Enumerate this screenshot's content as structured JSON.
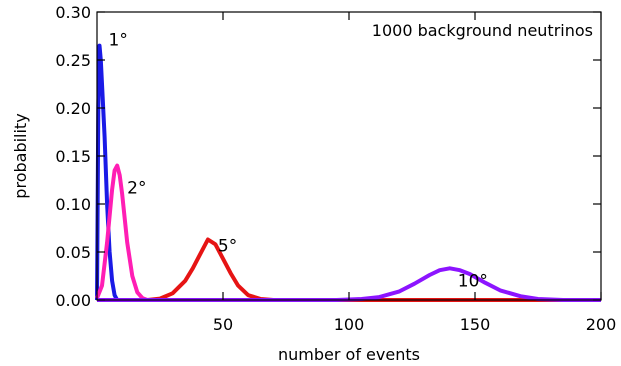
{
  "chart_data": {
    "type": "line",
    "xlabel": "number of events",
    "ylabel": "probability",
    "xlim": [
      0,
      200
    ],
    "ylim": [
      0,
      0.3
    ],
    "xticks": [
      50,
      100,
      150,
      200
    ],
    "xtick_labels": [
      "50",
      "100",
      "150",
      "200"
    ],
    "yticks": [
      0.0,
      0.05,
      0.1,
      0.15,
      0.2,
      0.25,
      0.3
    ],
    "ytick_labels": [
      "0.00",
      "0.05",
      "0.10",
      "0.15",
      "0.20",
      "0.25",
      "0.30"
    ],
    "annotation": "1000 background neutrinos",
    "grid": false,
    "series": [
      {
        "name": "1°",
        "color": "#1a1ae6",
        "x": [
          0,
          0.5,
          1,
          1.5,
          2,
          3,
          4,
          5,
          6,
          7,
          8,
          200
        ],
        "y": [
          0,
          0.2,
          0.265,
          0.25,
          0.225,
          0.17,
          0.1,
          0.05,
          0.02,
          0.005,
          0,
          0
        ]
      },
      {
        "name": "2°",
        "color": "#ff1eb4",
        "x": [
          0,
          2,
          4,
          6,
          7,
          8,
          9,
          10,
          11,
          12,
          14,
          16,
          18,
          20,
          200
        ],
        "y": [
          0.002,
          0.015,
          0.06,
          0.115,
          0.135,
          0.14,
          0.13,
          0.11,
          0.085,
          0.06,
          0.025,
          0.008,
          0.002,
          0,
          0
        ]
      },
      {
        "name": "5°",
        "color": "#e61414",
        "x": [
          0,
          20,
          25,
          30,
          35,
          38,
          41,
          44,
          47,
          50,
          53,
          56,
          60,
          65,
          70,
          200
        ],
        "y": [
          0,
          0,
          0.0015,
          0.007,
          0.02,
          0.033,
          0.048,
          0.063,
          0.058,
          0.043,
          0.028,
          0.015,
          0.005,
          0.001,
          0,
          0
        ]
      },
      {
        "name": "10°",
        "color": "#8c14ff",
        "x": [
          0,
          95,
          105,
          112,
          120,
          126,
          132,
          136,
          140,
          144,
          148,
          154,
          160,
          168,
          175,
          185,
          200
        ],
        "y": [
          0,
          0,
          0.001,
          0.003,
          0.009,
          0.017,
          0.026,
          0.031,
          0.033,
          0.031,
          0.027,
          0.018,
          0.01,
          0.004,
          0.001,
          0,
          0
        ]
      }
    ]
  }
}
